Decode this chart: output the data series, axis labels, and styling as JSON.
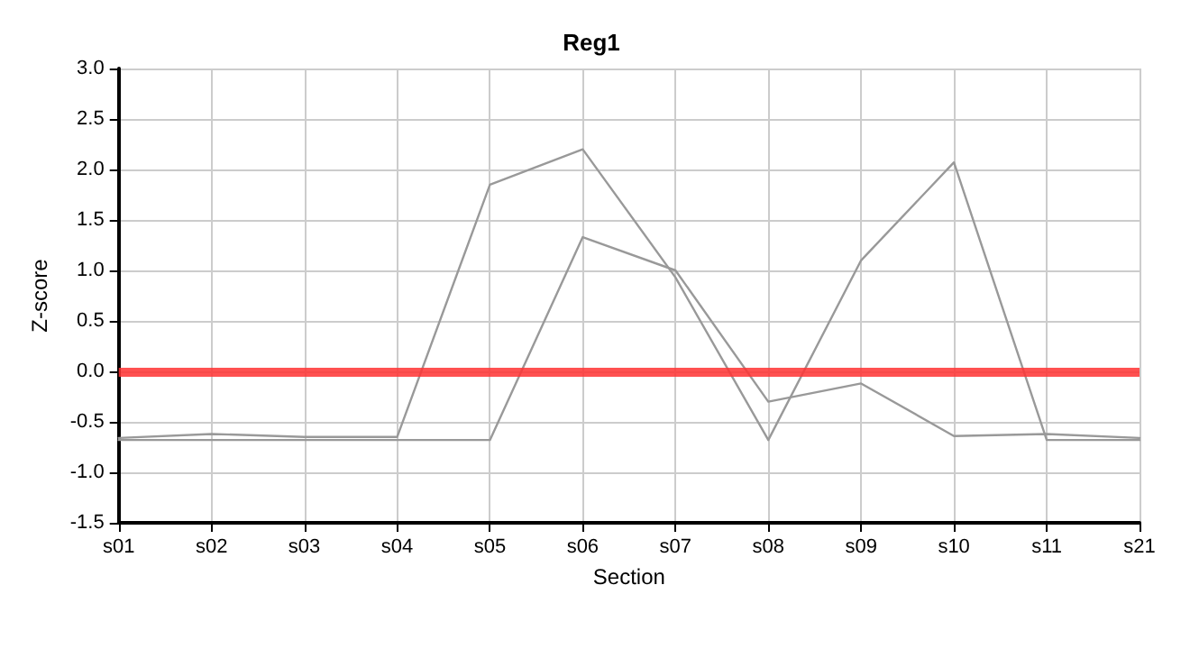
{
  "chart_data": {
    "type": "line",
    "title": "Reg1",
    "xlabel": "Section",
    "ylabel": "Z-score",
    "categories": [
      "s01",
      "s02",
      "s03",
      "s04",
      "s05",
      "s06",
      "s07",
      "s08",
      "s09",
      "s10",
      "s11",
      "s21"
    ],
    "series": [
      {
        "color": "#999999",
        "values": [
          -0.66,
          -0.62,
          -0.65,
          -0.65,
          1.85,
          2.2,
          0.93,
          -0.68,
          1.1,
          2.07,
          -0.68,
          -0.68
        ]
      },
      {
        "color": "#999999",
        "values": [
          -0.68,
          -0.68,
          -0.68,
          -0.68,
          -0.68,
          1.33,
          1.0,
          -0.3,
          -0.12,
          -0.64,
          -0.62,
          -0.66
        ]
      }
    ],
    "ylim": [
      -1.5,
      3.0
    ],
    "yticks": [
      {
        "value": -1.5,
        "label": "-1.5"
      },
      {
        "value": -1,
        "label": "-1.0"
      },
      {
        "value": -0.5,
        "label": "-0.5"
      },
      {
        "value": 0,
        "label": "0.0"
      },
      {
        "value": 0.5,
        "label": "0.5"
      },
      {
        "value": 1,
        "label": "1.0"
      },
      {
        "value": 1.5,
        "label": "1.5"
      },
      {
        "value": 2,
        "label": "2.0"
      },
      {
        "value": 2.5,
        "label": "2.5"
      },
      {
        "value": 3,
        "label": "3.0"
      }
    ],
    "ref_lines": [
      {
        "axis": "y",
        "value": 0,
        "color": "#ff3333"
      }
    ],
    "grid": true,
    "marker": "none",
    "line_style": "solid"
  }
}
